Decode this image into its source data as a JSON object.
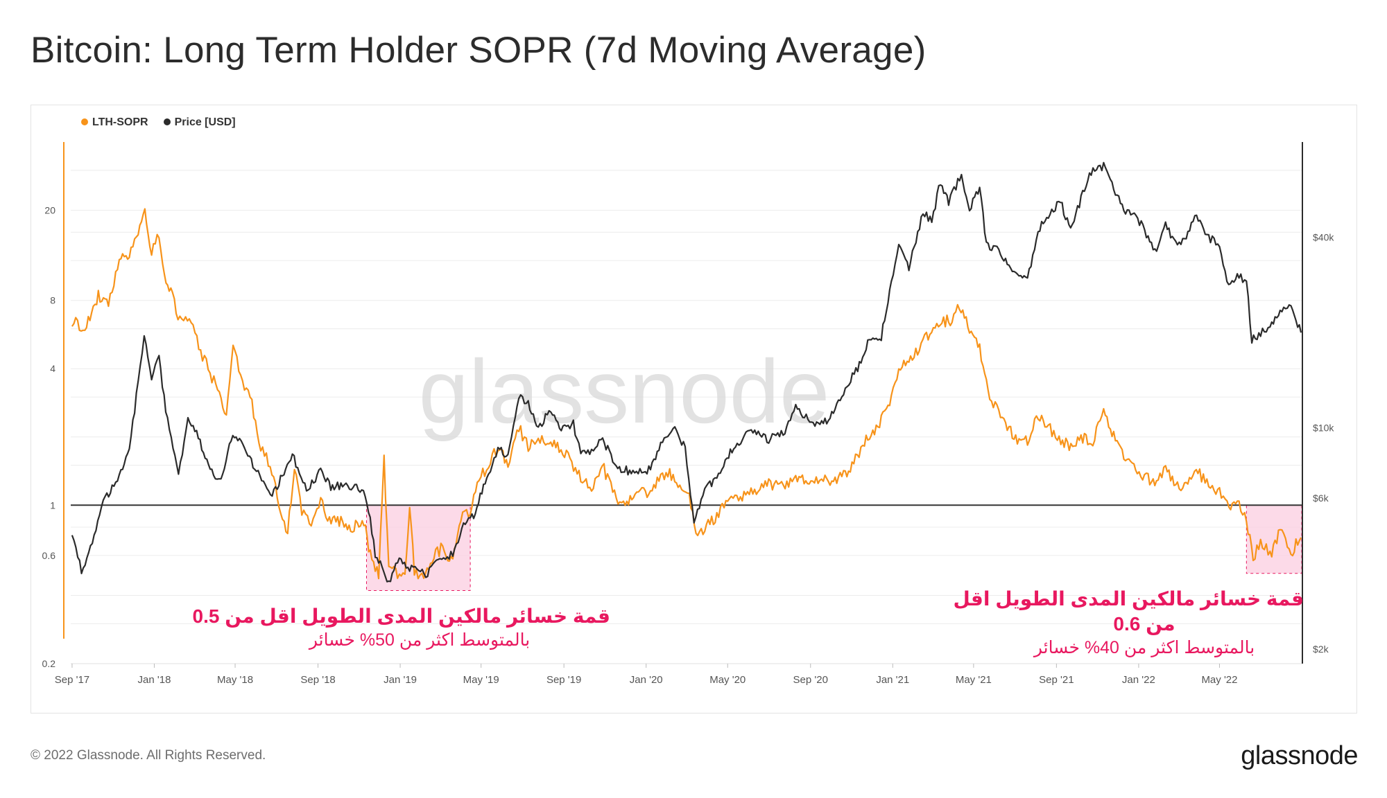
{
  "title": "Bitcoin: Long Term Holder SOPR (7d Moving Average)",
  "footer": "© 2022 Glassnode. All Rights Reserved.",
  "brand": "glassnode",
  "watermark": "glassnode",
  "colors": {
    "sopr": "#f7931a",
    "price": "#2b2b2b",
    "highlight_fill": "#fbd3e4",
    "highlight_border": "#e8185f",
    "annotation": "#e8185f"
  },
  "legend": [
    {
      "label": "LTH-SOPR",
      "color": "#f7931a"
    },
    {
      "label": "Price [USD]",
      "color": "#2b2b2b"
    }
  ],
  "annotations": [
    {
      "headline": "قمة خسائر مالكين المدى الطويل اقل من 0.5",
      "subline": "بالمتوسط اكثر من 50% خسائر"
    },
    {
      "headline": "قمة خسائر مالكين المدى الطويل اقل",
      "headline2": "من 0.6",
      "subline": "بالمتوسط اكثر من 40% خسائر"
    }
  ],
  "chart_data": {
    "type": "line",
    "title": "Bitcoin: Long Term Holder SOPR (7d Moving Average)",
    "x_range": [
      "2017-08-30",
      "2022-08-31"
    ],
    "x_ticks": [
      "Sep '17",
      "Jan '18",
      "May '18",
      "Sep '18",
      "Jan '19",
      "May '19",
      "Sep '19",
      "Jan '20",
      "May '20",
      "Sep '20",
      "Jan '21",
      "May '21",
      "Sep '21",
      "Jan '22",
      "May '22"
    ],
    "y_left": {
      "label": "LTH-SOPR",
      "scale": "log",
      "range": [
        0.2,
        40
      ],
      "ticks": [
        "0.2",
        "0.6",
        "1",
        "4",
        "8",
        "20"
      ],
      "tick_values": [
        0.2,
        0.6,
        1,
        4,
        8,
        20
      ]
    },
    "y_right": {
      "label": "Price [USD]",
      "scale": "log",
      "range": [
        1800,
        80000
      ],
      "ticks": [
        "$2k",
        "$6k",
        "$10k",
        "$40k"
      ],
      "tick_values": [
        2000,
        6000,
        10000,
        40000
      ]
    },
    "reference_line": 1,
    "highlight_regions": [
      {
        "x_start": "2018-11-12",
        "x_end": "2019-04-15",
        "y_low": 0.42,
        "y_high": 1.0
      },
      {
        "x_start": "2022-06-10",
        "x_end": "2022-08-31",
        "y_low": 0.5,
        "y_high": 1.0
      }
    ],
    "series": [
      {
        "name": "LTH-SOPR",
        "axis": "left",
        "points": [
          [
            "2017-09-01",
            6.5
          ],
          [
            "2017-09-20",
            6.0
          ],
          [
            "2017-10-10",
            8.5
          ],
          [
            "2017-10-25",
            7.5
          ],
          [
            "2017-11-10",
            12
          ],
          [
            "2017-11-25",
            13
          ],
          [
            "2017-12-08",
            16
          ],
          [
            "2017-12-18",
            20
          ],
          [
            "2017-12-28",
            13
          ],
          [
            "2018-01-08",
            16
          ],
          [
            "2018-01-16",
            10
          ],
          [
            "2018-01-28",
            8.5
          ],
          [
            "2018-02-08",
            6.5
          ],
          [
            "2018-02-22",
            7.0
          ],
          [
            "2018-03-08",
            5.0
          ],
          [
            "2018-03-22",
            4.0
          ],
          [
            "2018-04-05",
            3.2
          ],
          [
            "2018-04-18",
            2.5
          ],
          [
            "2018-04-28",
            5.0
          ],
          [
            "2018-05-12",
            3.5
          ],
          [
            "2018-05-26",
            2.8
          ],
          [
            "2018-06-08",
            1.8
          ],
          [
            "2018-06-22",
            1.5
          ],
          [
            "2018-07-05",
            1.0
          ],
          [
            "2018-07-18",
            0.75
          ],
          [
            "2018-07-28",
            1.5
          ],
          [
            "2018-08-08",
            0.95
          ],
          [
            "2018-08-22",
            0.85
          ],
          [
            "2018-09-05",
            1.05
          ],
          [
            "2018-09-18",
            0.85
          ],
          [
            "2018-10-05",
            0.85
          ],
          [
            "2018-10-22",
            0.8
          ],
          [
            "2018-11-08",
            0.85
          ],
          [
            "2018-11-20",
            0.55
          ],
          [
            "2018-11-30",
            0.5
          ],
          [
            "2018-12-08",
            1.6
          ],
          [
            "2018-12-15",
            0.55
          ],
          [
            "2018-12-28",
            0.5
          ],
          [
            "2019-01-08",
            0.48
          ],
          [
            "2019-01-15",
            1.0
          ],
          [
            "2019-01-22",
            0.5
          ],
          [
            "2019-02-05",
            0.5
          ],
          [
            "2019-02-20",
            0.6
          ],
          [
            "2019-03-05",
            0.65
          ],
          [
            "2019-03-20",
            0.55
          ],
          [
            "2019-04-01",
            0.9
          ],
          [
            "2019-04-15",
            0.95
          ],
          [
            "2019-04-28",
            1.3
          ],
          [
            "2019-05-12",
            1.5
          ],
          [
            "2019-05-26",
            1.8
          ],
          [
            "2019-06-10",
            1.5
          ],
          [
            "2019-06-26",
            2.2
          ],
          [
            "2019-07-10",
            1.8
          ],
          [
            "2019-07-25",
            2.0
          ],
          [
            "2019-08-10",
            1.9
          ],
          [
            "2019-08-25",
            1.8
          ],
          [
            "2019-09-10",
            1.6
          ],
          [
            "2019-09-26",
            1.3
          ],
          [
            "2019-10-12",
            1.2
          ],
          [
            "2019-10-28",
            1.5
          ],
          [
            "2019-11-15",
            1.1
          ],
          [
            "2019-12-01",
            1.0
          ],
          [
            "2019-12-18",
            1.2
          ],
          [
            "2020-01-05",
            1.1
          ],
          [
            "2020-01-20",
            1.3
          ],
          [
            "2020-02-05",
            1.4
          ],
          [
            "2020-02-20",
            1.2
          ],
          [
            "2020-03-05",
            1.1
          ],
          [
            "2020-03-15",
            0.72
          ],
          [
            "2020-03-28",
            0.8
          ],
          [
            "2020-04-15",
            0.9
          ],
          [
            "2020-05-01",
            1.05
          ],
          [
            "2020-05-20",
            1.1
          ],
          [
            "2020-06-10",
            1.15
          ],
          [
            "2020-07-01",
            1.25
          ],
          [
            "2020-07-20",
            1.2
          ],
          [
            "2020-08-10",
            1.35
          ],
          [
            "2020-08-30",
            1.25
          ],
          [
            "2020-09-20",
            1.3
          ],
          [
            "2020-10-10",
            1.3
          ],
          [
            "2020-10-30",
            1.45
          ],
          [
            "2020-11-20",
            1.9
          ],
          [
            "2020-12-10",
            2.2
          ],
          [
            "2020-12-30",
            3.0
          ],
          [
            "2021-01-10",
            4.0
          ],
          [
            "2021-01-30",
            4.5
          ],
          [
            "2021-02-20",
            5.5
          ],
          [
            "2021-03-10",
            6.5
          ],
          [
            "2021-03-30",
            6.5
          ],
          [
            "2021-04-10",
            7.5
          ],
          [
            "2021-04-25",
            6.0
          ],
          [
            "2021-05-10",
            5.0
          ],
          [
            "2021-05-25",
            3.0
          ],
          [
            "2021-06-10",
            2.5
          ],
          [
            "2021-06-30",
            2.0
          ],
          [
            "2021-07-20",
            1.9
          ],
          [
            "2021-08-05",
            2.5
          ],
          [
            "2021-08-20",
            2.2
          ],
          [
            "2021-09-05",
            2.0
          ],
          [
            "2021-09-20",
            1.8
          ],
          [
            "2021-10-05",
            2.0
          ],
          [
            "2021-10-25",
            1.9
          ],
          [
            "2021-11-10",
            2.6
          ],
          [
            "2021-11-25",
            2.0
          ],
          [
            "2021-12-10",
            1.6
          ],
          [
            "2021-12-30",
            1.4
          ],
          [
            "2022-01-15",
            1.3
          ],
          [
            "2022-01-30",
            1.25
          ],
          [
            "2022-02-10",
            1.5
          ],
          [
            "2022-02-25",
            1.2
          ],
          [
            "2022-03-10",
            1.25
          ],
          [
            "2022-03-30",
            1.4
          ],
          [
            "2022-04-15",
            1.2
          ],
          [
            "2022-05-01",
            1.15
          ],
          [
            "2022-05-15",
            1.0
          ],
          [
            "2022-05-30",
            1.05
          ],
          [
            "2022-06-10",
            0.85
          ],
          [
            "2022-06-20",
            0.58
          ],
          [
            "2022-07-01",
            0.7
          ],
          [
            "2022-07-15",
            0.6
          ],
          [
            "2022-07-30",
            0.78
          ],
          [
            "2022-08-15",
            0.62
          ],
          [
            "2022-08-30",
            0.72
          ]
        ]
      },
      {
        "name": "Price [USD]",
        "axis": "right",
        "points": [
          [
            "2017-09-01",
            4700
          ],
          [
            "2017-09-15",
            3500
          ],
          [
            "2017-10-01",
            4400
          ],
          [
            "2017-10-20",
            6000
          ],
          [
            "2017-11-10",
            7000
          ],
          [
            "2017-11-25",
            8500
          ],
          [
            "2017-12-08",
            14000
          ],
          [
            "2017-12-17",
            19500
          ],
          [
            "2017-12-28",
            14500
          ],
          [
            "2018-01-08",
            16500
          ],
          [
            "2018-01-18",
            11500
          ],
          [
            "2018-02-06",
            7000
          ],
          [
            "2018-02-20",
            11000
          ],
          [
            "2018-03-10",
            9000
          ],
          [
            "2018-03-30",
            7000
          ],
          [
            "2018-04-10",
            6800
          ],
          [
            "2018-04-25",
            9300
          ],
          [
            "2018-05-10",
            9000
          ],
          [
            "2018-05-30",
            7500
          ],
          [
            "2018-06-25",
            6100
          ],
          [
            "2018-07-25",
            8200
          ],
          [
            "2018-08-15",
            6300
          ],
          [
            "2018-09-05",
            7300
          ],
          [
            "2018-09-20",
            6500
          ],
          [
            "2018-10-10",
            6600
          ],
          [
            "2018-11-05",
            6400
          ],
          [
            "2018-11-15",
            5500
          ],
          [
            "2018-11-25",
            4000
          ],
          [
            "2018-12-15",
            3250
          ],
          [
            "2018-12-28",
            3800
          ],
          [
            "2019-01-15",
            3600
          ],
          [
            "2019-02-08",
            3450
          ],
          [
            "2019-03-01",
            3800
          ],
          [
            "2019-03-20",
            4000
          ],
          [
            "2019-04-05",
            5000
          ],
          [
            "2019-04-20",
            5300
          ],
          [
            "2019-05-12",
            7100
          ],
          [
            "2019-05-26",
            8700
          ],
          [
            "2019-06-10",
            8000
          ],
          [
            "2019-06-26",
            12500
          ],
          [
            "2019-07-10",
            12000
          ],
          [
            "2019-07-25",
            9800
          ],
          [
            "2019-08-10",
            11500
          ],
          [
            "2019-08-28",
            10000
          ],
          [
            "2019-09-15",
            10300
          ],
          [
            "2019-09-26",
            8200
          ],
          [
            "2019-10-12",
            8400
          ],
          [
            "2019-10-26",
            9300
          ],
          [
            "2019-11-20",
            7500
          ],
          [
            "2019-12-15",
            7200
          ],
          [
            "2020-01-05",
            7400
          ],
          [
            "2020-01-20",
            8600
          ],
          [
            "2020-02-10",
            10200
          ],
          [
            "2020-02-28",
            8600
          ],
          [
            "2020-03-12",
            5000
          ],
          [
            "2020-03-28",
            6400
          ],
          [
            "2020-04-20",
            7100
          ],
          [
            "2020-05-10",
            8800
          ],
          [
            "2020-06-05",
            9700
          ],
          [
            "2020-07-01",
            9200
          ],
          [
            "2020-07-25",
            9800
          ],
          [
            "2020-08-10",
            11700
          ],
          [
            "2020-09-05",
            10200
          ],
          [
            "2020-09-30",
            10700
          ],
          [
            "2020-10-20",
            12900
          ],
          [
            "2020-11-10",
            15500
          ],
          [
            "2020-11-25",
            18500
          ],
          [
            "2020-12-15",
            19400
          ],
          [
            "2020-12-30",
            28900
          ],
          [
            "2021-01-10",
            39000
          ],
          [
            "2021-01-25",
            32000
          ],
          [
            "2021-02-15",
            48000
          ],
          [
            "2021-02-28",
            45000
          ],
          [
            "2021-03-13",
            60000
          ],
          [
            "2021-03-25",
            52000
          ],
          [
            "2021-04-13",
            63000
          ],
          [
            "2021-04-25",
            49000
          ],
          [
            "2021-05-10",
            58000
          ],
          [
            "2021-05-20",
            38000
          ],
          [
            "2021-06-10",
            36000
          ],
          [
            "2021-06-25",
            32000
          ],
          [
            "2021-07-20",
            30000
          ],
          [
            "2021-08-10",
            45000
          ],
          [
            "2021-08-25",
            48000
          ],
          [
            "2021-09-07",
            52000
          ],
          [
            "2021-09-22",
            42000
          ],
          [
            "2021-10-05",
            51000
          ],
          [
            "2021-10-20",
            64000
          ],
          [
            "2021-11-10",
            67000
          ],
          [
            "2021-11-25",
            57000
          ],
          [
            "2021-12-10",
            49000
          ],
          [
            "2021-12-28",
            47000
          ],
          [
            "2022-01-10",
            42000
          ],
          [
            "2022-01-25",
            36000
          ],
          [
            "2022-02-10",
            44000
          ],
          [
            "2022-02-25",
            38000
          ],
          [
            "2022-03-10",
            39000
          ],
          [
            "2022-03-28",
            47000
          ],
          [
            "2022-04-15",
            40000
          ],
          [
            "2022-05-01",
            38000
          ],
          [
            "2022-05-12",
            29000
          ],
          [
            "2022-05-30",
            30000
          ],
          [
            "2022-06-10",
            29000
          ],
          [
            "2022-06-18",
            19000
          ],
          [
            "2022-07-01",
            20000
          ],
          [
            "2022-07-15",
            20500
          ],
          [
            "2022-07-30",
            23500
          ],
          [
            "2022-08-15",
            24200
          ],
          [
            "2022-08-30",
            20000
          ]
        ]
      }
    ]
  }
}
